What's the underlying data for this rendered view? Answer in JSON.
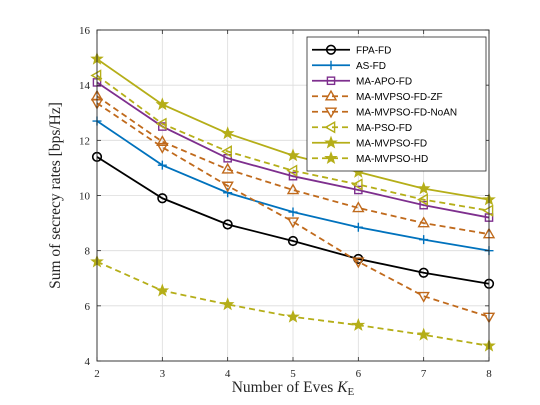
{
  "chart_data": {
    "type": "line",
    "title": "",
    "xlabel": "Number of Eves ",
    "xlabel_symbol": "K",
    "xlabel_subscript": "E",
    "ylabel": "Sum of secrecy rates [bps/Hz]",
    "x": [
      2,
      3,
      4,
      5,
      6,
      7,
      8
    ],
    "xlim": [
      2,
      8
    ],
    "ylim": [
      4,
      16
    ],
    "xticks": [
      "2",
      "3",
      "4",
      "5",
      "6",
      "7",
      "8"
    ],
    "yticks": [
      "4",
      "6",
      "8",
      "10",
      "12",
      "14",
      "16"
    ],
    "grid": true,
    "legend_position": "top-right",
    "series": [
      {
        "name": "FPA-FD",
        "color": "#000000",
        "dash": "solid",
        "marker": "circle",
        "values": [
          11.4,
          9.9,
          8.95,
          8.35,
          7.7,
          7.2,
          6.8
        ]
      },
      {
        "name": "AS-FD",
        "color": "#0072BD",
        "dash": "solid",
        "marker": "plus",
        "values": [
          12.7,
          11.1,
          10.1,
          9.4,
          8.85,
          8.4,
          8.0
        ]
      },
      {
        "name": "MA-APO-FD",
        "color": "#7E2F8E",
        "dash": "solid",
        "marker": "square",
        "values": [
          14.1,
          12.5,
          11.35,
          10.7,
          10.2,
          9.65,
          9.2
        ]
      },
      {
        "name": "MA-MVPSO-FD-ZF",
        "color": "#C06A1C",
        "dash": "dashed",
        "marker": "triangle-up",
        "values": [
          13.6,
          11.95,
          10.95,
          10.2,
          9.55,
          9.0,
          8.6
        ]
      },
      {
        "name": "MA-MVPSO-FD-NoAN",
        "color": "#C06A1C",
        "dash": "dashed",
        "marker": "triangle-down",
        "values": [
          13.35,
          11.75,
          10.35,
          9.05,
          7.6,
          6.35,
          5.6
        ]
      },
      {
        "name": "MA-PSO-FD",
        "color": "#B5AE18",
        "dash": "dashed",
        "marker": "triangle-left",
        "values": [
          14.35,
          12.6,
          11.6,
          10.9,
          10.4,
          9.85,
          9.45
        ]
      },
      {
        "name": "MA-MVPSO-FD",
        "color": "#B5AE18",
        "dash": "solid",
        "marker": "star",
        "values": [
          14.95,
          13.3,
          12.25,
          11.45,
          10.85,
          10.25,
          9.85
        ]
      },
      {
        "name": "MA-MVPSO-HD",
        "color": "#B5AE18",
        "dash": "dashed",
        "marker": "star",
        "values": [
          7.6,
          6.55,
          6.05,
          5.6,
          5.3,
          4.95,
          4.55
        ]
      }
    ]
  }
}
